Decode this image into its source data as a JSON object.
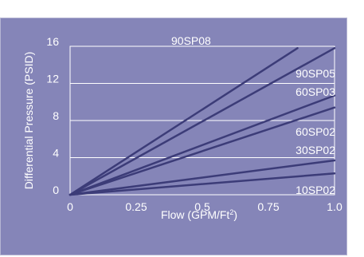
{
  "colors": {
    "panel_background": "#8585b8",
    "panel_border": "#b5b5d3",
    "gridline": "#ffffff",
    "series_line": "#3c3c78",
    "text": "#ffffff"
  },
  "chart_data": {
    "type": "line",
    "xlabel": "Flow (GPM/Ft",
    "xlabel_superscript": "2",
    "xlabel_suffix": ")",
    "ylabel": "Differential Pressure (PSID)",
    "xlim": [
      0,
      1.0
    ],
    "ylim": [
      0,
      16
    ],
    "x_ticks": [
      0,
      0.25,
      0.5,
      0.75,
      1.0
    ],
    "x_tick_labels": [
      "0",
      "0.25",
      "0.5",
      "0.75",
      "1.0"
    ],
    "y_ticks": [
      0,
      4,
      8,
      12,
      16
    ],
    "y_tick_labels": [
      "0",
      "4",
      "8",
      "12",
      "16"
    ],
    "grid": "horizontal",
    "series": [
      {
        "name": "90SP08",
        "x": [
          0,
          0.86
        ],
        "y": [
          0,
          15.8
        ]
      },
      {
        "name": "90SP05",
        "x": [
          0,
          1.0
        ],
        "y": [
          0,
          15.8
        ]
      },
      {
        "name": "60SP03",
        "x": [
          0,
          1.0
        ],
        "y": [
          0,
          10.7
        ]
      },
      {
        "name": "60SP02",
        "x": [
          0,
          1.0
        ],
        "y": [
          0,
          9.4
        ]
      },
      {
        "name": "30SP02",
        "x": [
          0,
          1.0
        ],
        "y": [
          0,
          3.7
        ]
      },
      {
        "name": "10SP02",
        "x": [
          0,
          1.0
        ],
        "y": [
          0,
          2.3
        ]
      }
    ]
  }
}
